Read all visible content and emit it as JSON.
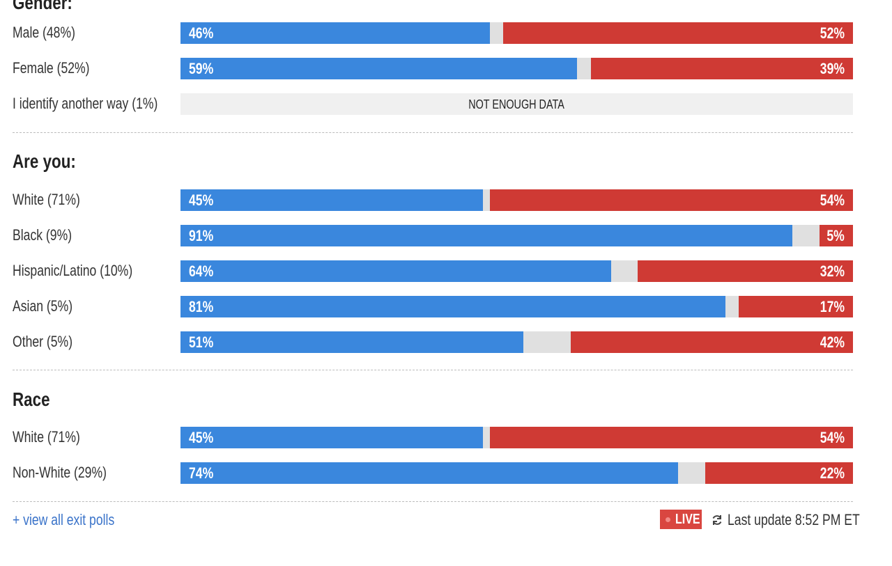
{
  "chart_data": {
    "type": "bar",
    "orientation": "horizontal-stacked",
    "colors": {
      "democrat": "#3a87dd",
      "republican": "#cf3a34",
      "other": "#e0e0e0"
    },
    "groups": [
      {
        "title": "Gender:",
        "rows": [
          {
            "label": "Male (48%)",
            "blue": 46,
            "red": 52
          },
          {
            "label": "Female (52%)",
            "blue": 59,
            "red": 39
          },
          {
            "label": "I identify another way (1%)",
            "blue": null,
            "red": null,
            "note": "NOT ENOUGH DATA"
          }
        ]
      },
      {
        "title": "Are you:",
        "rows": [
          {
            "label": "White (71%)",
            "blue": 45,
            "red": 54
          },
          {
            "label": "Black (9%)",
            "blue": 91,
            "red": 5
          },
          {
            "label": "Hispanic/Latino (10%)",
            "blue": 64,
            "red": 32
          },
          {
            "label": "Asian (5%)",
            "blue": 81,
            "red": 17
          },
          {
            "label": "Other (5%)",
            "blue": 51,
            "red": 42
          }
        ]
      },
      {
        "title": "Race",
        "rows": [
          {
            "label": "White (71%)",
            "blue": 45,
            "red": 54
          },
          {
            "label": "Non-White (29%)",
            "blue": 74,
            "red": 22
          }
        ]
      }
    ]
  },
  "footer": {
    "link": "+ view all exit polls",
    "live": "LIVE",
    "refresh_icon": "refresh-icon",
    "update": "Last update 8:52 PM ET"
  }
}
